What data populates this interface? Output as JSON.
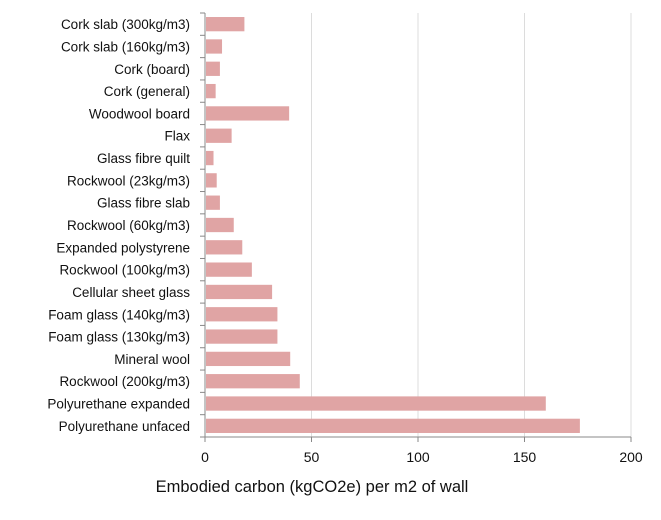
{
  "chart_data": {
    "type": "bar",
    "orientation": "horizontal",
    "title": "",
    "xlabel": "Embodied carbon (kgCO2e) per m2 of wall",
    "ylabel": "",
    "xlim": [
      0,
      200
    ],
    "xticks": [
      0,
      50,
      100,
      150,
      200
    ],
    "grid": "vertical",
    "legend": "none",
    "bar_color": "#e0a4a4",
    "categories": [
      "Cork slab (300kg/m3)",
      "Cork slab (160kg/m3)",
      "Cork (board)",
      "Cork (general)",
      "Woodwool board",
      "Flax",
      "Glass fibre quilt",
      "Rockwool (23kg/m3)",
      "Glass fibre slab",
      "Rockwool (60kg/m3)",
      "Expanded polystyrene",
      "Rockwool (100kg/m3)",
      "Cellular sheet glass",
      "Foam glass (140kg/m3)",
      "Foam glass (130kg/m3)",
      "Mineral wool",
      "Rockwool (200kg/m3)",
      "Polyurethane expanded",
      "Polyurethane unfaced"
    ],
    "values": [
      18.5,
      8,
      7,
      5,
      39.5,
      12.5,
      4,
      5.5,
      7,
      13.5,
      17.5,
      22,
      31.5,
      34,
      34,
      40,
      44.5,
      160,
      176
    ]
  }
}
